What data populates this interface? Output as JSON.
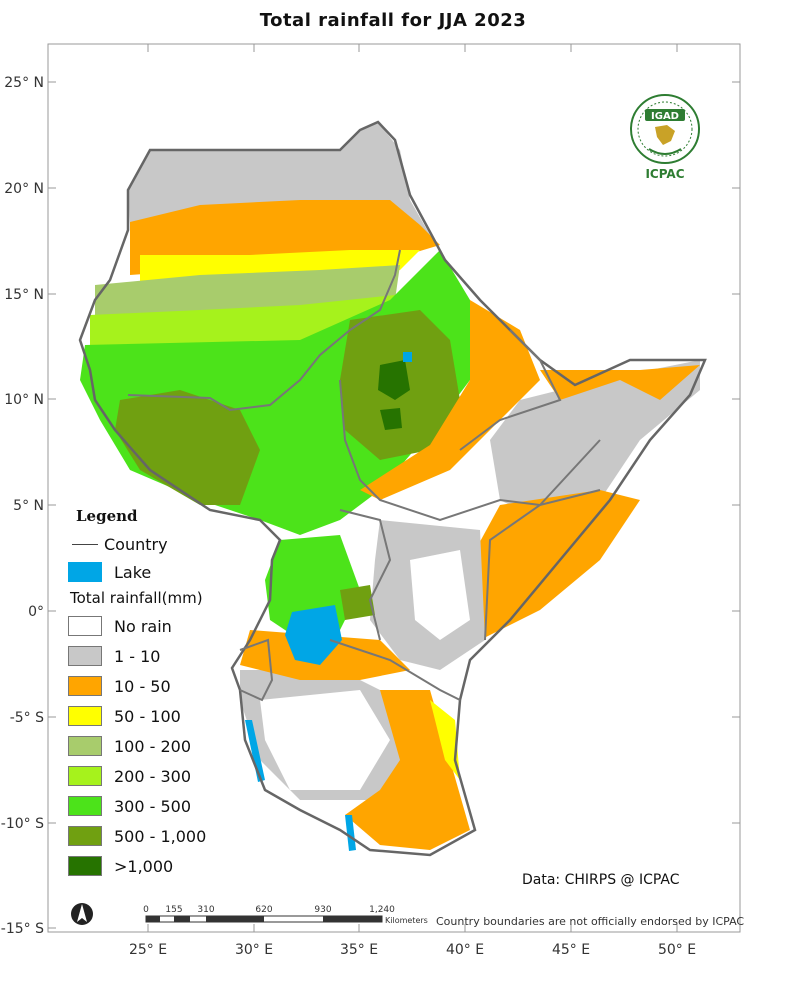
{
  "title": "Total rainfall  for  JJA  2023",
  "axes": {
    "lat_labels": [
      "25° N",
      "20° N",
      "15° N",
      "10° N",
      "5° N",
      "0°",
      "-5° S",
      "-10° S",
      "-15° S"
    ],
    "lon_labels": [
      "25° E",
      "30° E",
      "35° E",
      "40° E",
      "45° E",
      "50° E"
    ]
  },
  "legend": {
    "heading": "Legend",
    "country_label": "Country",
    "lake_label": "Lake",
    "rainfall_heading": "Total rainfall(mm)",
    "classes": [
      {
        "label": "No rain",
        "color": "#ffffff"
      },
      {
        "label": "1 - 10",
        "color": "#c8c8c8"
      },
      {
        "label": "10 - 50",
        "color": "#ffa500"
      },
      {
        "label": "50 - 100",
        "color": "#ffff00"
      },
      {
        "label": "100 - 200",
        "color": "#a8cc6c"
      },
      {
        "label": "200 - 300",
        "color": "#a6f21c"
      },
      {
        "label": "300 - 500",
        "color": "#4ce31a"
      },
      {
        "label": "500 - 1,000",
        "color": "#70a011"
      },
      {
        "label": ">1,000",
        "color": "#267300"
      }
    ],
    "lake_color": "#00a6e6"
  },
  "scalebar": {
    "ticks": [
      "0",
      "155",
      "310",
      "620",
      "930",
      "1,240"
    ],
    "unit": "Kilometers"
  },
  "logo": {
    "text": "IGAD",
    "caption": "ICPAC"
  },
  "credit": "Data: CHIRPS @ ICPAC",
  "disclaimer": "Country boundaries are not officially endorsed by ICPAC"
}
